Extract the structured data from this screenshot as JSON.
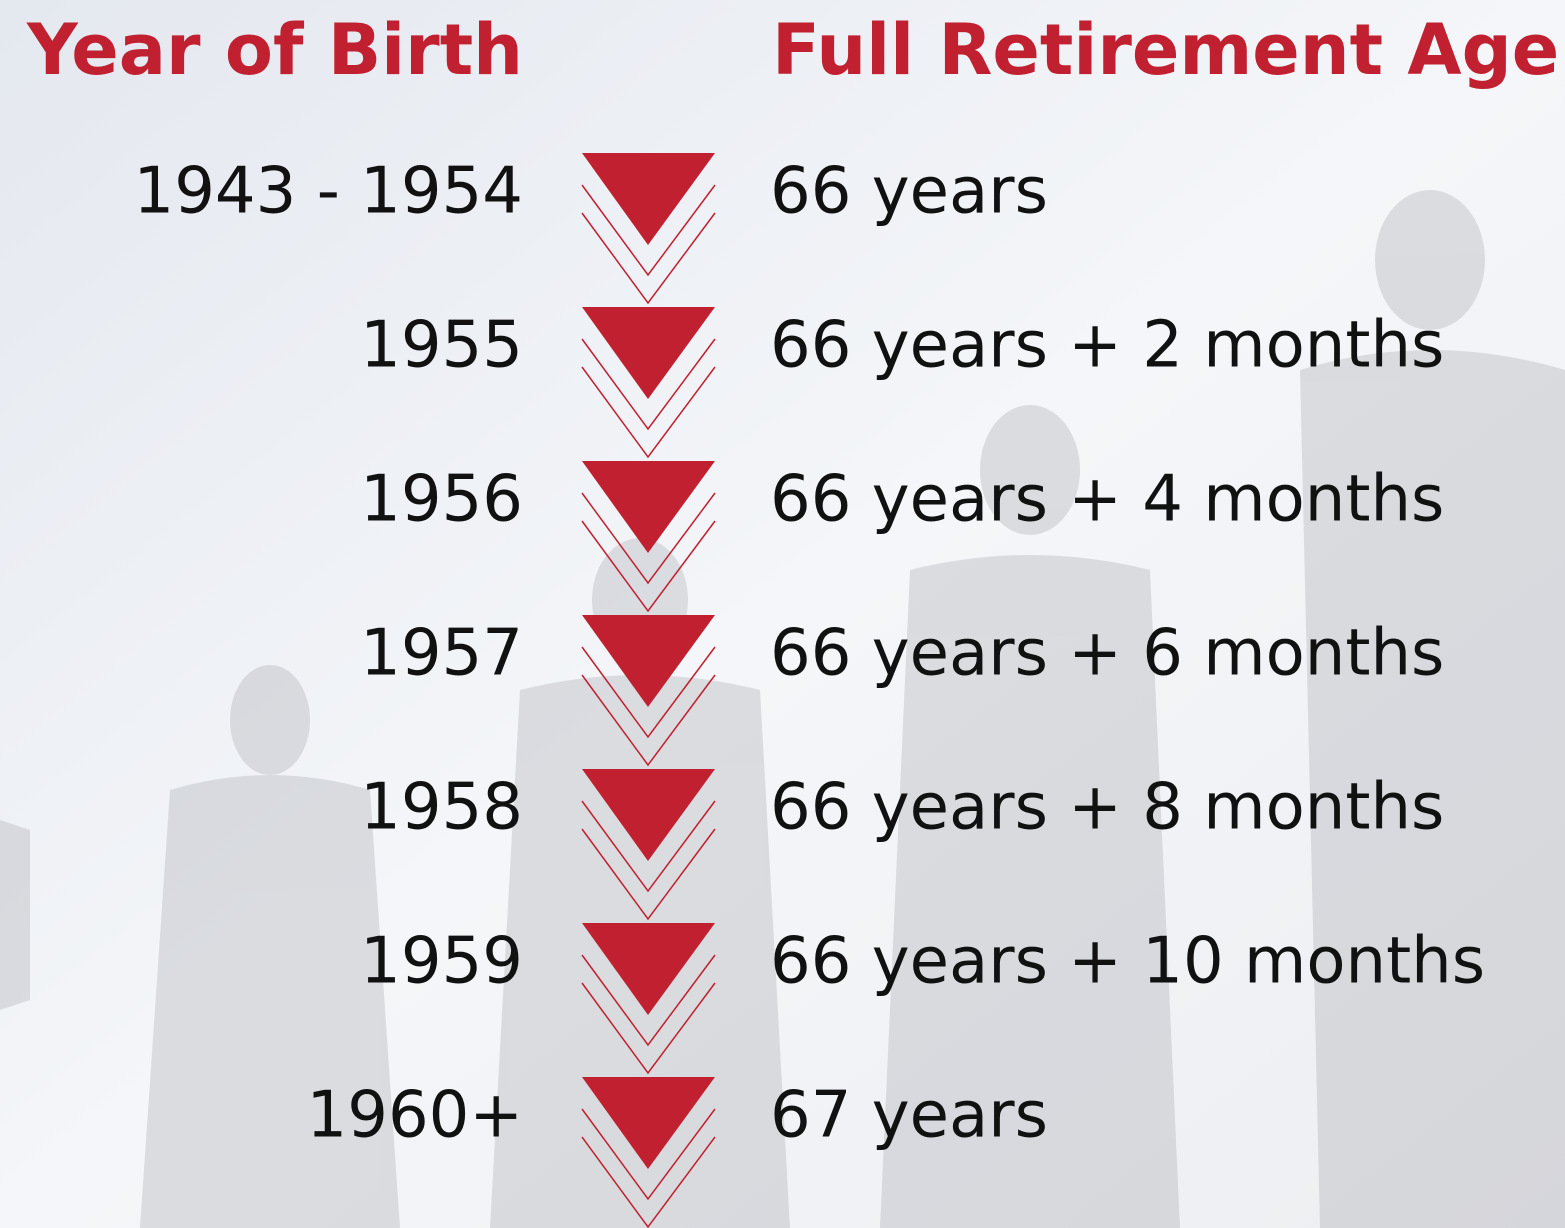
{
  "table": {
    "header": [
      "Year of Birth",
      "Full Retirement Age"
    ],
    "rows": [
      [
        "1943 - 1954",
        "66 years"
      ],
      [
        "1955",
        "66 years + 2 months"
      ],
      [
        "1956",
        "66 years + 4 months"
      ],
      [
        "1957",
        "66 years + 6 months"
      ],
      [
        "1958",
        "66 years + 8 months"
      ],
      [
        "1959",
        "66 years + 10 months"
      ],
      [
        "1960+",
        "67 years"
      ]
    ]
  }
}
